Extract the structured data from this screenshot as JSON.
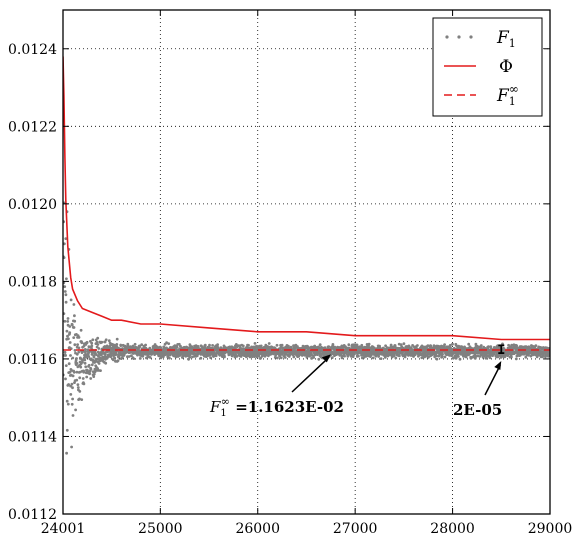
{
  "chart_data": {
    "type": "scatter",
    "title": "",
    "xlabel": "",
    "ylabel": "",
    "xlim": [
      24001,
      29000
    ],
    "ylim": [
      0.0112,
      0.0125
    ],
    "grid": true,
    "legend_position": "top-right",
    "x_ticks": [
      "24001",
      "25000",
      "26000",
      "27000",
      "28000",
      "29000"
    ],
    "x_tick_values": [
      24001,
      25000,
      26000,
      27000,
      28000,
      29000
    ],
    "y_ticks": [
      "0.0112",
      "0.0114",
      "0.0116",
      "0.0118",
      "0.0120",
      "0.0122",
      "0.0124"
    ],
    "y_tick_values": [
      0.0112,
      0.0114,
      0.0116,
      0.0118,
      0.012,
      0.0122,
      0.0124
    ],
    "series": [
      {
        "name": "F1",
        "legend_label": "F",
        "legend_sub": "1",
        "kind": "scatter",
        "color": "#808080",
        "description_points": {
          "x": [
            24010,
            24030,
            24050,
            24080,
            24120,
            24160,
            24200,
            24250,
            24300,
            24350,
            24400,
            24450,
            24500,
            24550,
            24600,
            24700,
            24800,
            24900,
            25000,
            25500,
            26000,
            27000,
            28000,
            29000
          ],
          "y_center": [
            0.01175,
            0.01168,
            0.01162,
            0.01158,
            0.0116,
            0.01158,
            0.01159,
            0.0116,
            0.0116,
            0.01161,
            0.01161,
            0.01162,
            0.01162,
            0.01162,
            0.01162,
            0.01162,
            0.01162,
            0.01162,
            0.01162,
            0.01162,
            0.01162,
            0.01162,
            0.01162,
            0.01162
          ],
          "y_spread": [
            0.0005,
            0.0004,
            0.00028,
            0.0002,
            0.00014,
            0.00011,
            9e-05,
            7e-05,
            6e-05,
            5e-05,
            4e-05,
            3.5e-05,
            3e-05,
            3e-05,
            2.5e-05,
            2e-05,
            2e-05,
            2e-05,
            2e-05,
            2e-05,
            2e-05,
            2e-05,
            2e-05,
            2e-05
          ]
        }
      },
      {
        "name": "Φ",
        "legend_label": "Φ",
        "kind": "line",
        "color": "#e31a1c",
        "x": [
          24001,
          24010,
          24020,
          24030,
          24050,
          24080,
          24100,
          24150,
          24200,
          24300,
          24400,
          24500,
          24600,
          24800,
          25000,
          25500,
          26000,
          26500,
          27000,
          27500,
          28000,
          28500,
          29000
        ],
        "y": [
          0.01238,
          0.01228,
          0.01212,
          0.01201,
          0.01189,
          0.01181,
          0.01178,
          0.01175,
          0.01173,
          0.01172,
          0.01171,
          0.0117,
          0.0117,
          0.01169,
          0.01169,
          0.01168,
          0.01167,
          0.01167,
          0.01166,
          0.01166,
          0.01166,
          0.01165,
          0.01165
        ]
      },
      {
        "name": "F1∞",
        "legend_label": "F",
        "legend_sub": "1",
        "legend_sup": "∞",
        "kind": "dashed",
        "color": "#e31a1c",
        "y": 0.011623
      }
    ],
    "annotations": [
      {
        "label_main": "F",
        "label_sub": "1",
        "label_sup": "∞",
        "label_rest": " =1.1623E-02",
        "arrow_to": [
          26750,
          0.011622
        ]
      },
      {
        "label_main": "2E-05",
        "arrow_to": [
          28500,
          0.011605
        ],
        "errorbar_x": 28500,
        "errorbar_y": 0.011625,
        "errorbar_half": 1e-05
      }
    ]
  }
}
